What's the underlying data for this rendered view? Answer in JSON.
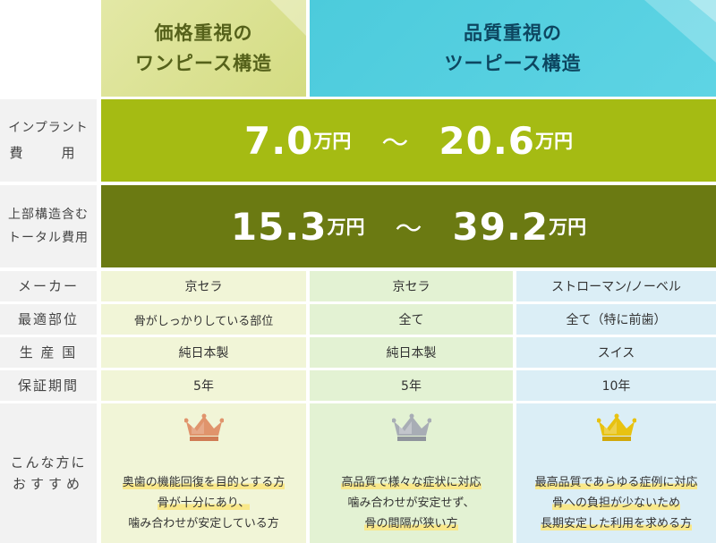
{
  "headers": {
    "col1": {
      "line1": "価格重視の",
      "line2": "ワンピース構造"
    },
    "col2": {
      "line1": "品質重視の",
      "line2": "ツーピース構造"
    }
  },
  "implant_cost": {
    "label_line1": "インプラント",
    "label_line2": "費　用",
    "min_value": "7.0",
    "max_value": "20.6",
    "unit": "万円",
    "separator": "〜"
  },
  "total_cost": {
    "label_line1": "上部構造含む",
    "label_line2": "トータル費用",
    "min_value": "15.3",
    "max_value": "39.2",
    "unit": "万円",
    "separator": "〜"
  },
  "rows": [
    {
      "label": "メーカー",
      "values": [
        "京セラ",
        "京セラ",
        "ストローマン/ノーベル"
      ]
    },
    {
      "label": "最適部位",
      "values": [
        "骨がしっかりしている部位",
        "全て",
        "全て（特に前歯）"
      ]
    },
    {
      "label": "生 産 国",
      "values": [
        "純日本製",
        "純日本製",
        "スイス"
      ]
    },
    {
      "label": "保証期間",
      "values": [
        "5年",
        "5年",
        "10年"
      ]
    }
  ],
  "recommend": {
    "label_line1": "こんな方に",
    "label_line2": "おすすめ",
    "columns": [
      {
        "crown": "bronze-crown-icon",
        "lines": [
          "奥歯の機能回復を目的とする方",
          "骨が十分にあり、",
          "噛み合わせが安定している方"
        ]
      },
      {
        "crown": "silver-crown-icon",
        "lines": [
          "高品質で様々な症状に対応",
          "噛み合わせが安定せず、",
          "骨の間隔が狭い方"
        ]
      },
      {
        "crown": "gold-crown-icon",
        "lines": [
          "最高品質であらゆる症例に対応",
          "骨への負担が少ないため",
          "長期安定した利用を求める方"
        ]
      }
    ]
  },
  "colors": {
    "header1": "#d8e08c",
    "header2": "#4fcfe0",
    "implant_band": "#a5bb13",
    "total_band": "#6b7a12",
    "bronze": "#e0946c",
    "silver": "#a8adb5",
    "gold": "#e8c211"
  }
}
